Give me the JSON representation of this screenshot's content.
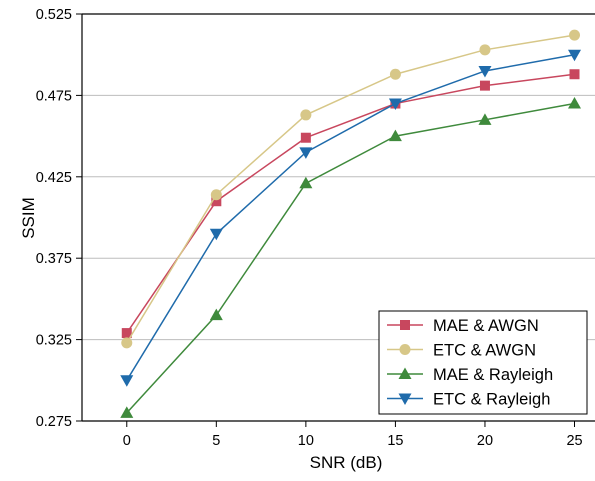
{
  "chart_data": {
    "type": "line",
    "title": "",
    "xlabel": "SNR (dB)",
    "ylabel": "SSIM",
    "x": [
      0,
      5,
      10,
      15,
      20,
      25
    ],
    "x_tick_labels": [
      "0",
      "5",
      "10",
      "15",
      "20",
      "25"
    ],
    "y_tick_labels": [
      "0.275",
      "0.325",
      "0.375",
      "0.425",
      "0.475",
      "0.525"
    ],
    "xlim": [
      -2.5,
      26.2
    ],
    "ylim": [
      0.275,
      0.525
    ],
    "grid": "horizontal",
    "legend_position": "bottom-right",
    "series": [
      {
        "name": "MAE & AWGN",
        "color": "#c8475e",
        "marker": "square",
        "values": [
          0.329,
          0.41,
          0.449,
          0.47,
          0.481,
          0.488
        ]
      },
      {
        "name": "ETC & AWGN",
        "color": "#d7c788",
        "marker": "circle",
        "values": [
          0.323,
          0.414,
          0.463,
          0.488,
          0.503,
          0.512
        ]
      },
      {
        "name": "MAE & Rayleigh",
        "color": "#3f8a3c",
        "marker": "triangle-up",
        "values": [
          0.28,
          0.34,
          0.421,
          0.45,
          0.46,
          0.47
        ]
      },
      {
        "name": "ETC & Rayleigh",
        "color": "#1f6bab",
        "marker": "triangle-down",
        "values": [
          0.3,
          0.39,
          0.44,
          0.47,
          0.49,
          0.5
        ]
      }
    ]
  }
}
